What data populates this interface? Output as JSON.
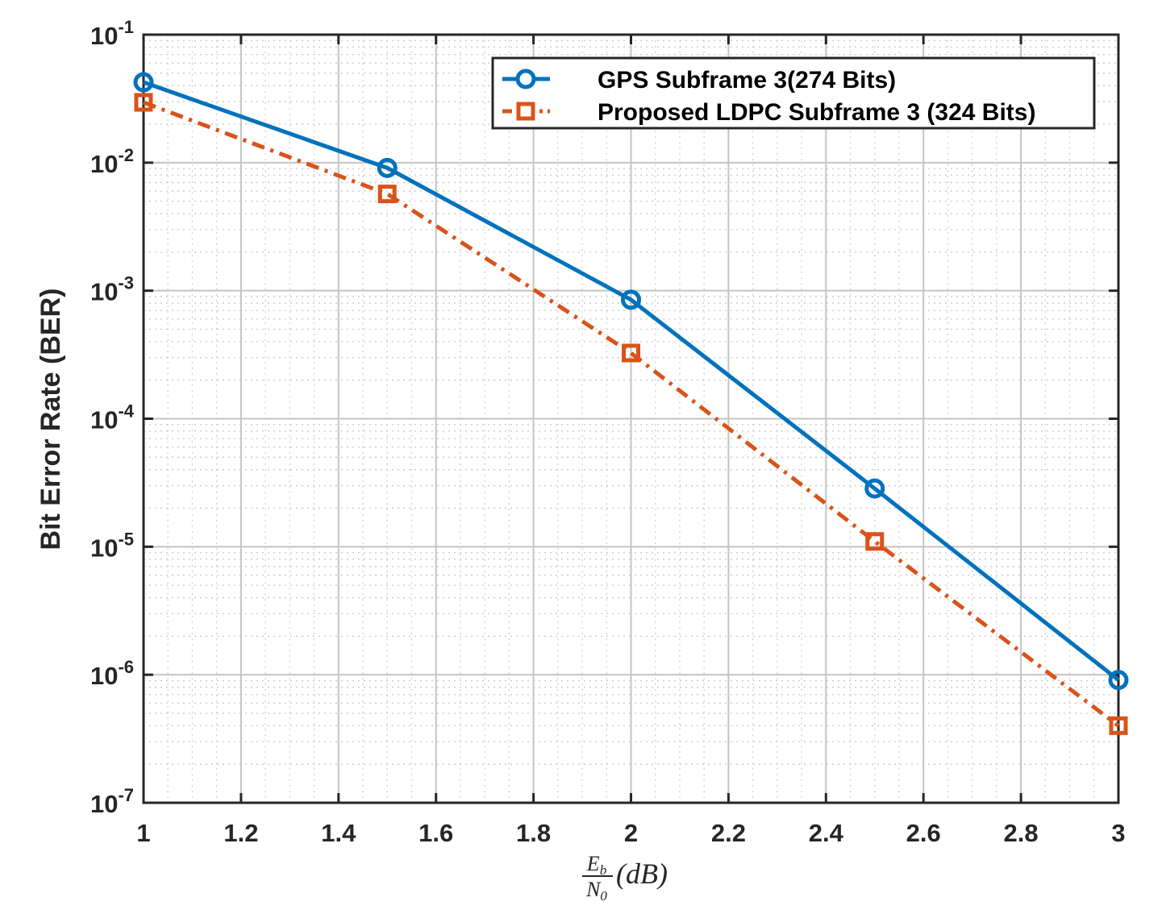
{
  "chart_data": {
    "type": "line",
    "title": "",
    "xlabel": {
      "num_base": "E",
      "num_sub": "b",
      "den_base": "N",
      "den_sub": "0",
      "unit": "(dB)"
    },
    "ylabel": "Bit Error Rate (BER)",
    "xlim": [
      1,
      3
    ],
    "ylim": [
      1e-07,
      0.1
    ],
    "yscale": "log",
    "grid": true,
    "legend_position": "top-right",
    "xticks": [
      1,
      1.2,
      1.4,
      1.6,
      1.8,
      2,
      2.2,
      2.4,
      2.6,
      2.8,
      3
    ],
    "xtick_labels": [
      "1",
      "1.2",
      "1.4",
      "1.6",
      "1.8",
      "2",
      "2.2",
      "2.4",
      "2.6",
      "2.8",
      "3"
    ],
    "yticks": [
      {
        "base": "10",
        "exp": "-1"
      },
      {
        "base": "10",
        "exp": "-2"
      },
      {
        "base": "10",
        "exp": "-3"
      },
      {
        "base": "10",
        "exp": "-4"
      },
      {
        "base": "10",
        "exp": "-5"
      },
      {
        "base": "10",
        "exp": "-6"
      },
      {
        "base": "10",
        "exp": "-7"
      }
    ],
    "x": [
      1,
      1.5,
      2,
      2.5,
      3
    ],
    "series": [
      {
        "name": "GPS Subframe 3(274 Bits)",
        "color": "#0072BD",
        "marker": "circle",
        "linestyle": "solid",
        "values": [
          0.0425,
          0.0091,
          0.00085,
          2.85e-05,
          9.1e-07
        ]
      },
      {
        "name": "Proposed LDPC Subframe 3 (324 Bits)",
        "color": "#D95319",
        "marker": "square",
        "linestyle": "dashdot",
        "values": [
          0.0296,
          0.0057,
          0.000326,
          1.1e-05,
          4e-07
        ]
      }
    ]
  }
}
